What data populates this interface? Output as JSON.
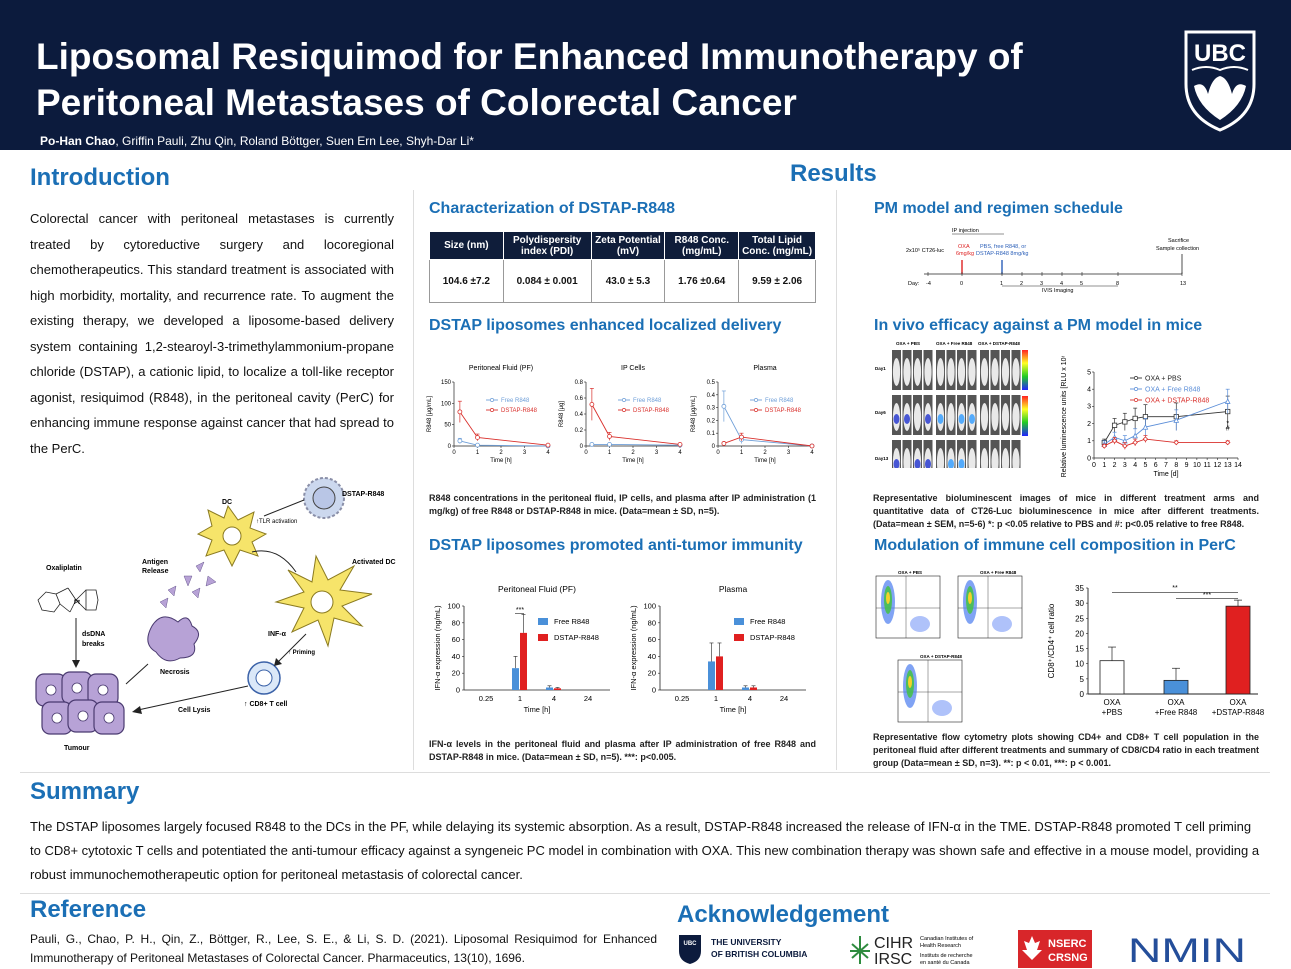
{
  "header": {
    "title_line1": "Liposomal Resiquimod for Enhanced Immunotherapy of",
    "title_line2": "Peritoneal Metastases of Colorectal Cancer",
    "lead_author": "Po-Han Chao",
    "other_authors": ", Griffin Pauli, Zhu Qin, Roland Böttger, Suen Ern Lee, Shyh-Dar Li*",
    "logo_text": "UBC"
  },
  "intro": {
    "heading": "Introduction",
    "text": "Colorectal cancer with peritoneal metastases is currently treated by cytoreductive surgery and locoregional chemotherapeutics. This standard treatment is associated with high morbidity, mortality, and recurrence rate. To augment the existing therapy, we developed a liposome-based delivery system containing 1,2-stearoyl-3-trimethylammonium-propane chloride (DSTAP), a cationic lipid, to localize a toll-like receptor agonist, resiquimod (R848), in the peritoneal cavity (PerC) for enhancing immune response against cancer that had spread to the PerC."
  },
  "diagram": {
    "dstap": "DSTAP-R848",
    "dc": "DC",
    "tlr": "↑TLR activation",
    "activated_dc": "Activated DC",
    "antigen": "Antigen",
    "release": "Release",
    "oxaliplatin": "Oxaliplatin",
    "dsdna1": "dsDNA",
    "dsdna2": "breaks",
    "necrosis": "Necrosis",
    "inf": "INF-α",
    "priming": "↑ Priming",
    "cd8": "↑ CD8+ T cell",
    "lysis": "Cell Lysis",
    "tumour": "Tumour"
  },
  "results": {
    "heading": "Results"
  },
  "characterization": {
    "heading": "Characterization of DSTAP-R848",
    "columns": [
      "Size (nm)",
      "Polydispersity index (PDI)",
      "Zeta Potential (mV)",
      "R848 Conc. (mg/mL)",
      "Total Lipid Conc. (mg/mL)"
    ],
    "values": [
      "104.6 ±7.2",
      "0.084 ± 0.001",
      "43.0 ± 5.3",
      "1.76 ±0.64",
      "9.59 ± 2.06"
    ]
  },
  "delivery": {
    "heading": "DSTAP liposomes enhanced localized delivery",
    "caption": "R848 concentrations in the peritoneal fluid, IP cells, and plasma after IP administration (1 mg/kg) of free R848 or DSTAP-R848 in mice. (Data=mean ± SD, n=5)."
  },
  "immunity": {
    "heading": "DSTAP liposomes promoted anti-tumor immunity",
    "caption": "IFN-α levels in the peritoneal fluid and plasma after IP administration of free R848 and DSTAP-R848 in mice. (Data=mean ± SD, n=5). ***: p<0.005."
  },
  "pm_model": {
    "heading": "PM model and regimen schedule",
    "ip_injection": "IP injection",
    "cells": "2x10⁵ CT26-luc",
    "oxa": "OXA",
    "oxa_dose": "6mg/kg",
    "pbs": "PBS, free R848, or",
    "pbs2": "DSTAP-R848 8mg/kg",
    "sacrifice": "Sacrifice",
    "sample": "Sample collection",
    "day": "Day:",
    "days": [
      "-4",
      "0",
      "1",
      "2",
      "3",
      "4",
      "5",
      "8",
      "13"
    ],
    "ivis": "IVIS Imaging"
  },
  "efficacy": {
    "heading": "In vivo efficacy against a PM model in mice",
    "groups": [
      "OXA + PBS",
      "OXA + Free R848",
      "OXA + DSTAP-R848"
    ],
    "days": [
      "Day1",
      "Day6",
      "Day13"
    ],
    "caption": "Representative bioluminescent images of mice in different treatment arms and quantitative data of CT26-Luc bioluminescence in mice after different treatments. (Data=mean ± SEM, n=5-6) *: p <0.05 relative to PBS and #: p<0.05 relative to free R848."
  },
  "modulation": {
    "heading": "Modulation of immune cell composition in PerC",
    "caption": "Representative flow cytometry plots showing CD4+ and CD8+ T cell population in the peritoneal fluid after different treatments and summary of CD8/CD4 ratio in each treatment group (Data=mean ± SD, n=3). **: p < 0.01, ***: p < 0.001.",
    "plot_labels": [
      "OXA + PBS",
      "OXA + Free R848",
      "OXA + DSTAP-R848"
    ]
  },
  "summary": {
    "heading": "Summary",
    "text": "The DSTAP liposomes largely focused R848 to the DCs in the PF, while delaying its systemic absorption. As a result, DSTAP-R848 increased the release of IFN-α in the TME. DSTAP-R848 promoted T cell priming to CD8+ cytotoxic T cells and potentiated the anti-tumour efficacy against a syngeneic PC model in combination with OXA. This new combination therapy was shown safe and effective in a mouse model, providing a robust immunochemotherapeutic option for peritoneal metastasis of colorectal cancer."
  },
  "reference": {
    "heading": "Reference",
    "text": "Pauli, G., Chao, P. H., Qin, Z., Böttger, R., Lee, S. E., & Li, S. D. (2021). Liposomal Resiquimod for Enhanced Immunotherapy of Peritoneal Metastases of Colorectal Cancer. Pharmaceutics, 13(10), 1696."
  },
  "acknowledgement": {
    "heading": "Acknowledgement",
    "ubc1": "THE UNIVERSITY",
    "ubc2": "OF BRITISH COLUMBIA",
    "cihr": "CIHR",
    "irsc": "IRSC",
    "cihr_en1": "Canadian Institutes of",
    "cihr_en2": "Health Research",
    "cihr_fr1": "Instituts de recherche",
    "cihr_fr2": "en santé du Canada",
    "nserc": "NSERC",
    "crsng": "CRSNG",
    "nmin": "NMIN"
  },
  "chart_data": [
    {
      "type": "line",
      "title": "Peritoneal Fluid (PF)",
      "xlabel": "Time [h]",
      "ylabel": "R848 [μg/mL]",
      "xlim": [
        0,
        4
      ],
      "ylim": [
        0,
        150
      ],
      "xticks": [
        0,
        1,
        2,
        3,
        4
      ],
      "yticks": [
        0,
        50,
        100,
        150
      ],
      "series": [
        {
          "name": "Free R848",
          "color": "#6f9fd8",
          "x": [
            0.25,
            1,
            4
          ],
          "y": [
            12,
            2,
            0
          ],
          "err": [
            6,
            2,
            0
          ]
        },
        {
          "name": "DSTAP-R848",
          "color": "#d9302c",
          "x": [
            0.25,
            1,
            4
          ],
          "y": [
            80,
            20,
            2
          ],
          "err": [
            25,
            8,
            1
          ]
        }
      ]
    },
    {
      "type": "line",
      "title": "IP Cells",
      "xlabel": "Time [h]",
      "ylabel": "R848 [μg]",
      "xlim": [
        0,
        4
      ],
      "ylim": [
        0,
        0.8
      ],
      "xticks": [
        0,
        1,
        2,
        3,
        4
      ],
      "yticks": [
        0.0,
        0.2,
        0.4,
        0.6,
        0.8
      ],
      "series": [
        {
          "name": "Free R848",
          "color": "#6f9fd8",
          "x": [
            0.25,
            1,
            4
          ],
          "y": [
            0.02,
            0.02,
            0.01
          ],
          "err": [
            0.01,
            0.01,
            0
          ]
        },
        {
          "name": "DSTAP-R848",
          "color": "#d9302c",
          "x": [
            0.25,
            1,
            4
          ],
          "y": [
            0.52,
            0.12,
            0.02
          ],
          "err": [
            0.2,
            0.05,
            0.01
          ]
        }
      ]
    },
    {
      "type": "line",
      "title": "Plasma",
      "xlabel": "Time [h]",
      "ylabel": "R848 [μg/mL]",
      "xlim": [
        0,
        4
      ],
      "ylim": [
        0,
        0.5
      ],
      "xticks": [
        0,
        1,
        2,
        3,
        4
      ],
      "yticks": [
        0.0,
        0.1,
        0.2,
        0.3,
        0.4,
        0.5
      ],
      "series": [
        {
          "name": "Free R848",
          "color": "#6f9fd8",
          "x": [
            0.25,
            1,
            4
          ],
          "y": [
            0.31,
            0.05,
            0.0
          ],
          "err": [
            0.12,
            0.03,
            0
          ]
        },
        {
          "name": "DSTAP-R848",
          "color": "#d9302c",
          "x": [
            0.25,
            1,
            4
          ],
          "y": [
            0.02,
            0.07,
            0.0
          ],
          "err": [
            0.01,
            0.03,
            0
          ]
        }
      ]
    },
    {
      "type": "bar",
      "title": "Peritoneal Fluid (PF)",
      "xlabel": "Time [h]",
      "ylabel": "IFN-α expression (ng/mL)",
      "categories": [
        "0.25",
        "1",
        "4",
        "24"
      ],
      "ylim": [
        0,
        100
      ],
      "yticks": [
        0,
        20,
        40,
        60,
        80,
        100
      ],
      "annotation": "***",
      "series": [
        {
          "name": "Free R848",
          "color": "#4a90d9",
          "values": [
            0,
            26,
            3,
            0
          ],
          "err": [
            0,
            14,
            2,
            0
          ]
        },
        {
          "name": "DSTAP-R848",
          "color": "#e02020",
          "values": [
            0,
            68,
            2,
            0
          ],
          "err": [
            0,
            22,
            1,
            0
          ]
        }
      ]
    },
    {
      "type": "bar",
      "title": "Plasma",
      "xlabel": "Time [h]",
      "ylabel": "IFN-α expression (ng/mL)",
      "categories": [
        "0.25",
        "1",
        "4",
        "24"
      ],
      "ylim": [
        0,
        100
      ],
      "yticks": [
        0,
        20,
        40,
        60,
        80,
        100
      ],
      "series": [
        {
          "name": "Free R848",
          "color": "#4a90d9",
          "values": [
            0,
            34,
            3,
            0
          ],
          "err": [
            0,
            22,
            2,
            0
          ]
        },
        {
          "name": "DSTAP-R848",
          "color": "#e02020",
          "values": [
            0,
            40,
            3,
            0
          ],
          "err": [
            0,
            16,
            2,
            0
          ]
        }
      ]
    },
    {
      "type": "line",
      "xlabel": "Time [d]",
      "ylabel": "Relative luminescence units [RLU x 10⁶]",
      "xlim": [
        0,
        14
      ],
      "ylim": [
        0,
        5
      ],
      "xticks": [
        0,
        1,
        2,
        3,
        4,
        5,
        6,
        7,
        8,
        9,
        10,
        11,
        12,
        13,
        14
      ],
      "yticks": [
        0,
        1,
        2,
        3,
        4,
        5
      ],
      "annotations": [
        "*",
        "#"
      ],
      "series": [
        {
          "name": "OXA + PBS",
          "color": "#333333",
          "marker": "square",
          "x": [
            1,
            2,
            3,
            4,
            5,
            8,
            13
          ],
          "y": [
            0.9,
            1.9,
            2.1,
            2.3,
            2.4,
            2.4,
            2.7
          ],
          "err": [
            0.2,
            0.4,
            0.5,
            0.6,
            0.7,
            0.8,
            0.9
          ]
        },
        {
          "name": "OXA + Free R848",
          "color": "#5b8ed8",
          "marker": "triangle",
          "x": [
            1,
            2,
            3,
            4,
            5,
            8,
            13
          ],
          "y": [
            0.8,
            1.2,
            1.0,
            1.3,
            1.8,
            2.2,
            3.3
          ],
          "err": [
            0.2,
            0.3,
            0.3,
            0.4,
            0.5,
            0.6,
            0.7
          ]
        },
        {
          "name": "OXA + DSTAP-R848",
          "color": "#d9302c",
          "marker": "diamond",
          "x": [
            1,
            2,
            3,
            4,
            5,
            8,
            13
          ],
          "y": [
            0.7,
            1.0,
            0.7,
            0.9,
            1.1,
            0.9,
            0.9
          ],
          "err": [
            0.1,
            0.2,
            0.2,
            0.2,
            0.2,
            0.1,
            0.1
          ]
        }
      ]
    },
    {
      "type": "bar",
      "ylabel": "CD8⁺/CD4⁺ cell ratio",
      "categories": [
        "OXA +PBS",
        "OXA +Free R848",
        "OXA +DSTAP-R848"
      ],
      "values": [
        11,
        4.5,
        29
      ],
      "err": [
        4.5,
        4,
        2
      ],
      "colors": [
        "#ffffff",
        "#4a90d9",
        "#e02020"
      ],
      "ylim": [
        0,
        35
      ],
      "yticks": [
        0,
        5,
        10,
        15,
        20,
        25,
        30,
        35
      ],
      "annotations": [
        "**",
        "***"
      ]
    }
  ]
}
